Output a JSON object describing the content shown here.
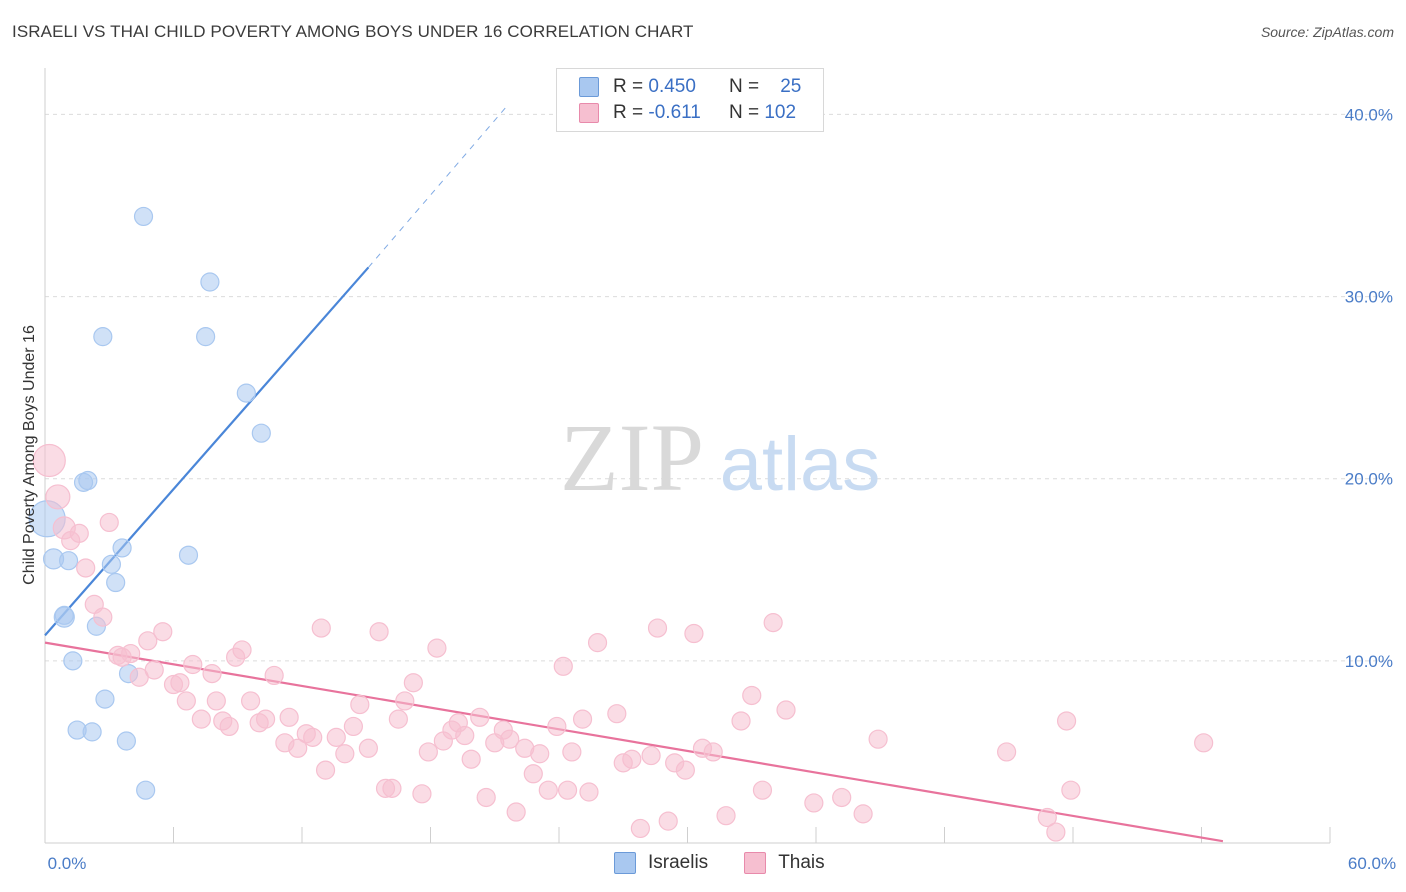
{
  "title": "ISRAELI VS THAI CHILD POVERTY AMONG BOYS UNDER 16 CORRELATION CHART",
  "source": "Source: ZipAtlas.com",
  "watermark": {
    "zip": "ZIP",
    "atlas": "atlas"
  },
  "legend": {
    "rows": [
      {
        "r_label": "R =",
        "r_value": "0.450",
        "n_label": "N =",
        "n_value": "25",
        "color": "#a9c8f0"
      },
      {
        "r_label": "R =",
        "r_value": "-0.611",
        "n_label": "N =",
        "n_value": "102",
        "color": "#f6bfd0"
      }
    ]
  },
  "bottom_legend": [
    {
      "label": "Israelis",
      "color": "#a9c8f0"
    },
    {
      "label": "Thais",
      "color": "#f6bfd0"
    }
  ],
  "chart_data": {
    "type": "scatter",
    "title": "ISRAELI VS THAI CHILD POVERTY AMONG BOYS UNDER 16 CORRELATION CHART",
    "xlabel": "",
    "ylabel": "Child Poverty Among Boys Under 16",
    "xlim": [
      0,
      60
    ],
    "ylim": [
      0,
      40
    ],
    "x_tick_labels": [
      "0.0%",
      "60.0%"
    ],
    "y_tick_labels": [
      "10.0%",
      "20.0%",
      "30.0%",
      "40.0%"
    ],
    "y_ticks": [
      10,
      20,
      30,
      40
    ],
    "grid": true,
    "legend_placement": "top-center",
    "series": [
      {
        "name": "Israelis",
        "color": "#4a86d8",
        "fill": "#a9c8f0",
        "points": [
          [
            0.1,
            17.8,
            18
          ],
          [
            0.4,
            15.6,
            10
          ],
          [
            0.9,
            12.4,
            10
          ],
          [
            1.1,
            15.5,
            9
          ],
          [
            1.3,
            10.0,
            9
          ],
          [
            1.5,
            6.2,
            9
          ],
          [
            1.8,
            19.8,
            9
          ],
          [
            2.0,
            19.9,
            9
          ],
          [
            2.2,
            6.1,
            9
          ],
          [
            2.4,
            11.9,
            9
          ],
          [
            2.7,
            27.8,
            9
          ],
          [
            2.8,
            7.9,
            9
          ],
          [
            3.1,
            15.3,
            9
          ],
          [
            3.3,
            14.3,
            9
          ],
          [
            3.6,
            16.2,
            9
          ],
          [
            3.8,
            5.6,
            9
          ],
          [
            3.9,
            9.3,
            9
          ],
          [
            4.6,
            34.4,
            9
          ],
          [
            4.7,
            2.9,
            9
          ],
          [
            6.7,
            15.8,
            9
          ],
          [
            7.5,
            27.8,
            9
          ],
          [
            7.7,
            30.8,
            9
          ],
          [
            9.4,
            24.7,
            9
          ],
          [
            10.1,
            22.5,
            9
          ],
          [
            0.9,
            12.5,
            9
          ]
        ],
        "trend": {
          "x": [
            0,
            15.1
          ],
          "y": [
            11.4,
            31.6
          ],
          "dashed_to": [
            21.6,
            40.5
          ]
        }
      },
      {
        "name": "Thais",
        "color": "#e8739c",
        "fill": "#f6bfd0",
        "points": [
          [
            0.2,
            21.0,
            16
          ],
          [
            0.6,
            19.0,
            12
          ],
          [
            0.9,
            17.3,
            11
          ],
          [
            1.2,
            16.6,
            9
          ],
          [
            1.6,
            17.0,
            9
          ],
          [
            1.9,
            15.1,
            9
          ],
          [
            2.3,
            13.1,
            9
          ],
          [
            2.7,
            12.4,
            9
          ],
          [
            3.0,
            17.6,
            9
          ],
          [
            3.4,
            10.3,
            9
          ],
          [
            3.6,
            10.2,
            9
          ],
          [
            4.0,
            10.4,
            9
          ],
          [
            4.4,
            9.1,
            9
          ],
          [
            4.8,
            11.1,
            9
          ],
          [
            5.1,
            9.5,
            9
          ],
          [
            5.5,
            11.6,
            9
          ],
          [
            6.0,
            8.7,
            9
          ],
          [
            6.3,
            8.8,
            9
          ],
          [
            6.6,
            7.8,
            9
          ],
          [
            6.9,
            9.8,
            9
          ],
          [
            7.3,
            6.8,
            9
          ],
          [
            7.8,
            9.3,
            9
          ],
          [
            8.0,
            7.8,
            9
          ],
          [
            8.3,
            6.7,
            9
          ],
          [
            8.6,
            6.4,
            9
          ],
          [
            8.9,
            10.2,
            9
          ],
          [
            9.2,
            10.6,
            9
          ],
          [
            9.6,
            7.8,
            9
          ],
          [
            10.0,
            6.6,
            9
          ],
          [
            10.3,
            6.8,
            9
          ],
          [
            10.7,
            9.2,
            9
          ],
          [
            11.2,
            5.5,
            9
          ],
          [
            11.4,
            6.9,
            9
          ],
          [
            11.8,
            5.2,
            9
          ],
          [
            12.2,
            6.0,
            9
          ],
          [
            12.5,
            5.8,
            9
          ],
          [
            12.9,
            11.8,
            9
          ],
          [
            13.1,
            4.0,
            9
          ],
          [
            13.6,
            5.8,
            9
          ],
          [
            14.0,
            4.9,
            9
          ],
          [
            14.4,
            6.4,
            9
          ],
          [
            14.7,
            7.6,
            9
          ],
          [
            15.1,
            5.2,
            9
          ],
          [
            15.6,
            11.6,
            9
          ],
          [
            15.9,
            3.0,
            9
          ],
          [
            16.2,
            3.0,
            9
          ],
          [
            16.5,
            6.8,
            9
          ],
          [
            16.8,
            7.8,
            9
          ],
          [
            17.2,
            8.8,
            9
          ],
          [
            17.6,
            2.7,
            9
          ],
          [
            17.9,
            5.0,
            9
          ],
          [
            18.3,
            10.7,
            9
          ],
          [
            18.6,
            5.6,
            9
          ],
          [
            19.0,
            6.2,
            9
          ],
          [
            19.3,
            6.6,
            9
          ],
          [
            19.6,
            5.9,
            9
          ],
          [
            19.9,
            4.6,
            9
          ],
          [
            20.3,
            6.9,
            9
          ],
          [
            20.6,
            2.5,
            9
          ],
          [
            21.0,
            5.5,
            9
          ],
          [
            21.4,
            6.2,
            9
          ],
          [
            21.7,
            5.7,
            9
          ],
          [
            22.0,
            1.7,
            9
          ],
          [
            22.4,
            5.2,
            9
          ],
          [
            22.8,
            3.8,
            9
          ],
          [
            23.1,
            4.9,
            9
          ],
          [
            23.5,
            2.9,
            9
          ],
          [
            23.9,
            6.4,
            9
          ],
          [
            24.2,
            9.7,
            9
          ],
          [
            24.6,
            5.0,
            9
          ],
          [
            25.1,
            6.8,
            9
          ],
          [
            25.4,
            2.8,
            9
          ],
          [
            25.8,
            11.0,
            9
          ],
          [
            26.7,
            7.1,
            9
          ],
          [
            27.0,
            4.4,
            9
          ],
          [
            27.4,
            4.6,
            9
          ],
          [
            27.8,
            0.8,
            9
          ],
          [
            28.3,
            4.8,
            9
          ],
          [
            28.6,
            11.8,
            9
          ],
          [
            29.1,
            1.2,
            9
          ],
          [
            29.4,
            4.4,
            9
          ],
          [
            29.9,
            4.0,
            9
          ],
          [
            30.3,
            11.5,
            9
          ],
          [
            30.7,
            5.2,
            9
          ],
          [
            31.2,
            5.0,
            9
          ],
          [
            31.8,
            1.5,
            9
          ],
          [
            32.5,
            6.7,
            9
          ],
          [
            33.0,
            8.1,
            9
          ],
          [
            33.5,
            2.9,
            9
          ],
          [
            34.0,
            12.1,
            9
          ],
          [
            34.6,
            7.3,
            9
          ],
          [
            35.9,
            2.2,
            9
          ],
          [
            37.2,
            2.5,
            9
          ],
          [
            38.2,
            1.6,
            9
          ],
          [
            38.9,
            5.7,
            9
          ],
          [
            44.9,
            5.0,
            9
          ],
          [
            46.8,
            1.4,
            9
          ],
          [
            47.2,
            0.6,
            9
          ],
          [
            47.7,
            6.7,
            9
          ],
          [
            47.9,
            2.9,
            9
          ],
          [
            54.1,
            5.5,
            9
          ],
          [
            24.4,
            2.9,
            9
          ]
        ],
        "trend": {
          "x": [
            0,
            55
          ],
          "y": [
            11.0,
            0.1
          ]
        }
      }
    ]
  }
}
